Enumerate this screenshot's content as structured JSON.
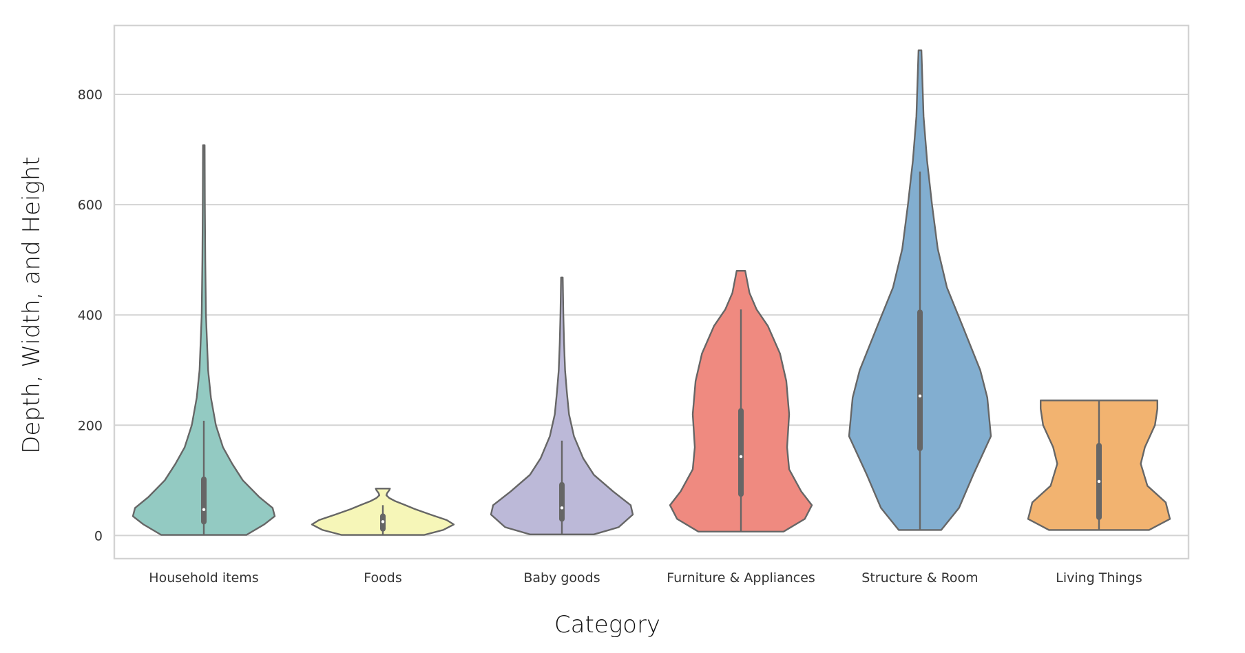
{
  "chart_data": {
    "type": "violin",
    "title": "",
    "xlabel": "Category",
    "ylabel": "Depth, Width, and Height",
    "ylim": [
      -42,
      925
    ],
    "yticks": [
      0,
      200,
      400,
      600,
      800
    ],
    "grid": true,
    "legend": "none",
    "categories": [
      "Household items",
      "Foods",
      "Baby goods",
      "Furniture & Appliances",
      "Structure & Room",
      "Living Things"
    ],
    "series": [
      {
        "category": "Household items",
        "color": "#93cac2",
        "min": 1,
        "q1": 25,
        "median": 47,
        "q3": 102,
        "max": 708,
        "whisker_high": 208,
        "density": [
          [
            1,
            0.6
          ],
          [
            20,
            0.85
          ],
          [
            35,
            1.0
          ],
          [
            50,
            0.97
          ],
          [
            70,
            0.78
          ],
          [
            100,
            0.55
          ],
          [
            130,
            0.4
          ],
          [
            160,
            0.27
          ],
          [
            200,
            0.17
          ],
          [
            250,
            0.1
          ],
          [
            300,
            0.06
          ],
          [
            400,
            0.03
          ],
          [
            500,
            0.02
          ],
          [
            600,
            0.015
          ],
          [
            708,
            0.012
          ]
        ]
      },
      {
        "category": "Foods",
        "color": "#f6f6b8",
        "min": 1,
        "q1": 12,
        "median": 25,
        "q3": 35,
        "max": 85,
        "whisker_high": 55,
        "density": [
          [
            1,
            0.58
          ],
          [
            10,
            0.85
          ],
          [
            20,
            1.0
          ],
          [
            28,
            0.9
          ],
          [
            38,
            0.67
          ],
          [
            48,
            0.45
          ],
          [
            56,
            0.3
          ],
          [
            62,
            0.18
          ],
          [
            68,
            0.09
          ],
          [
            73,
            0.05
          ],
          [
            77,
            0.06
          ],
          [
            82,
            0.09
          ],
          [
            85,
            0.1
          ]
        ]
      },
      {
        "category": "Baby goods",
        "color": "#bcb9d8",
        "min": 2,
        "q1": 30,
        "median": 50,
        "q3": 92,
        "max": 468,
        "whisker_high": 172,
        "density": [
          [
            2,
            0.45
          ],
          [
            15,
            0.8
          ],
          [
            38,
            1.0
          ],
          [
            55,
            0.97
          ],
          [
            80,
            0.72
          ],
          [
            110,
            0.45
          ],
          [
            140,
            0.3
          ],
          [
            180,
            0.17
          ],
          [
            220,
            0.1
          ],
          [
            260,
            0.07
          ],
          [
            300,
            0.045
          ],
          [
            350,
            0.03
          ],
          [
            400,
            0.02
          ],
          [
            468,
            0.012
          ]
        ]
      },
      {
        "category": "Furniture & Appliances",
        "color": "#ef8a80",
        "min": 7,
        "q1": 75,
        "median": 143,
        "q3": 226,
        "max": 480,
        "whisker_high": 410,
        "density": [
          [
            7,
            0.6
          ],
          [
            30,
            0.9
          ],
          [
            55,
            1.0
          ],
          [
            80,
            0.85
          ],
          [
            120,
            0.68
          ],
          [
            160,
            0.65
          ],
          [
            220,
            0.68
          ],
          [
            280,
            0.64
          ],
          [
            330,
            0.55
          ],
          [
            380,
            0.38
          ],
          [
            410,
            0.22
          ],
          [
            440,
            0.12
          ],
          [
            480,
            0.06
          ]
        ]
      },
      {
        "category": "Structure & Room",
        "color": "#82aed0",
        "min": 10,
        "q1": 158,
        "median": 253,
        "q3": 405,
        "max": 880,
        "whisker_high": 660,
        "density": [
          [
            10,
            0.3
          ],
          [
            50,
            0.55
          ],
          [
            110,
            0.75
          ],
          [
            180,
            1.0
          ],
          [
            250,
            0.95
          ],
          [
            300,
            0.85
          ],
          [
            380,
            0.6
          ],
          [
            450,
            0.38
          ],
          [
            520,
            0.25
          ],
          [
            600,
            0.17
          ],
          [
            680,
            0.1
          ],
          [
            760,
            0.05
          ],
          [
            880,
            0.02
          ]
        ]
      },
      {
        "category": "Living Things",
        "color": "#f2b370",
        "min": 10,
        "q1": 33,
        "median": 98,
        "q3": 163,
        "max": 245,
        "whisker_high": 245,
        "density": [
          [
            10,
            0.6
          ],
          [
            30,
            0.85
          ],
          [
            60,
            0.8
          ],
          [
            90,
            0.58
          ],
          [
            130,
            0.5
          ],
          [
            160,
            0.55
          ],
          [
            200,
            0.67
          ],
          [
            230,
            0.7
          ],
          [
            245,
            0.7
          ]
        ]
      }
    ]
  }
}
